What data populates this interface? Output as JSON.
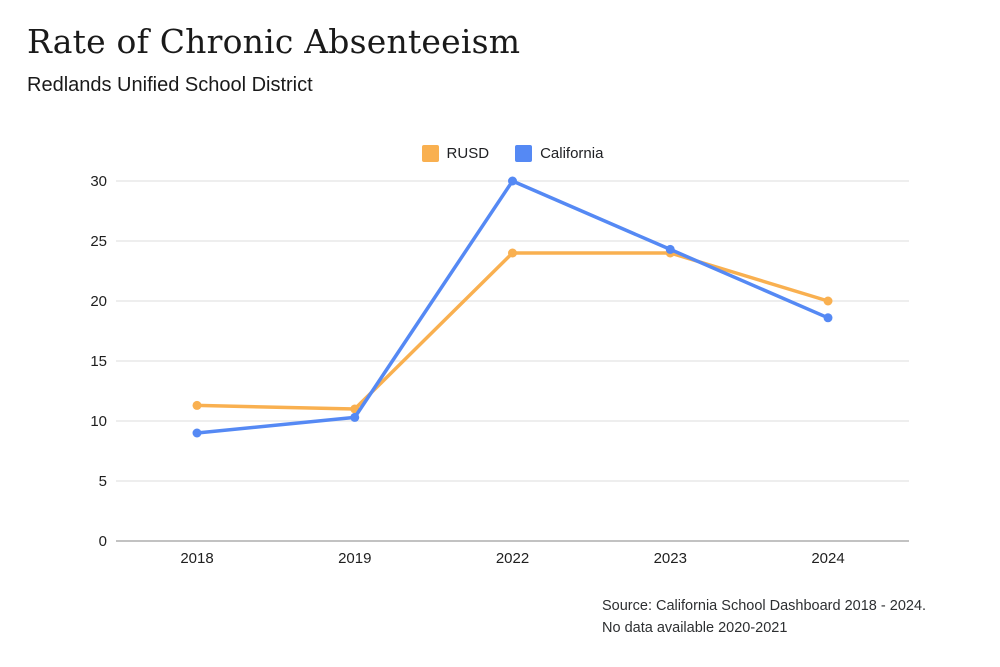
{
  "header": {
    "title": "Rate of Chronic Absenteeism",
    "subtitle": "Redlands Unified School District"
  },
  "source": {
    "line1": "Source: California School Dashboard 2018 - 2024.",
    "line2": "No data available 2020-2021"
  },
  "chart_data": {
    "type": "line",
    "title": "Rate of Chronic Absenteeism",
    "subtitle": "Redlands Unified School District",
    "categories": [
      "2018",
      "2019",
      "2022",
      "2023",
      "2024"
    ],
    "series": [
      {
        "name": "RUSD",
        "color": "#F9B050",
        "values": [
          11.3,
          11,
          24,
          24,
          20
        ]
      },
      {
        "name": "California",
        "color": "#5589F4",
        "values": [
          9,
          10.3,
          30,
          24.3,
          18.6
        ]
      }
    ],
    "xlabel": "",
    "ylabel": "",
    "ylim": [
      0,
      30
    ],
    "y_ticks": [
      0,
      5,
      10,
      15,
      20,
      25,
      30
    ],
    "grid": true,
    "legend_position": "top-center",
    "markers": true
  },
  "colors": {
    "grid": "#E8E8E8",
    "axis_zero": "#C2C2C2",
    "text": "#1F1F1F",
    "background": "#FFFFFF"
  }
}
